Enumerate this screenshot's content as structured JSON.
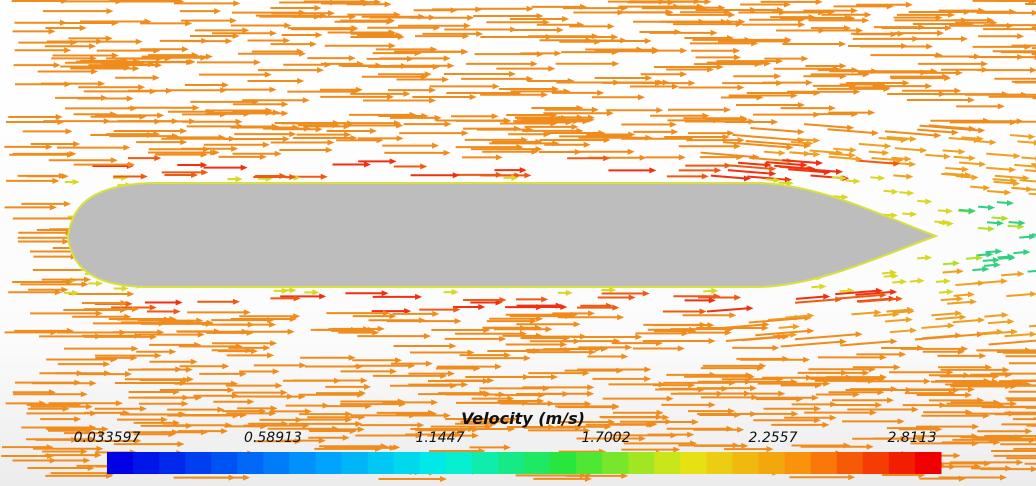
{
  "colorbar": {
    "title": "Velocity (m/s)",
    "ticks": [
      "0.033597",
      "0.58913",
      "1.1447",
      "1.7002",
      "2.2557",
      "2.8113"
    ]
  }
}
